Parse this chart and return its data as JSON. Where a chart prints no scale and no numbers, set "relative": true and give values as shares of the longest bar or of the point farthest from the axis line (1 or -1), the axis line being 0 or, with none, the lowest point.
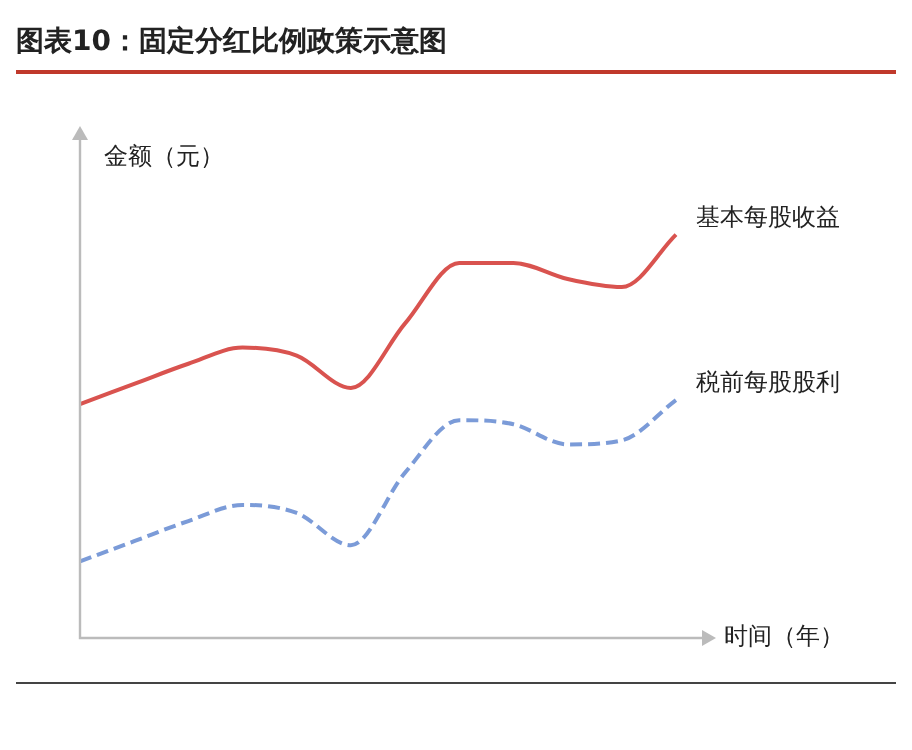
{
  "chart_data": {
    "type": "line",
    "title": "图表10：固定分红比例政策示意图",
    "xlabel": "时间（年）",
    "ylabel": "金额（元）",
    "relative": true,
    "legend": false,
    "marker": "none",
    "categories": [
      null,
      null,
      null,
      null,
      null,
      null,
      null,
      null,
      null,
      null,
      null,
      null
    ],
    "series": [
      {
        "name": "基本每股收益",
        "color": "#d9534f",
        "line_style": "solid",
        "values": [
          0.58,
          0.63,
          0.68,
          0.72,
          0.7,
          0.62,
          0.78,
          0.93,
          0.93,
          0.89,
          0.87,
          1
        ]
      },
      {
        "name": "税前每股股利",
        "color": "#7b9bd8",
        "line_style": "dashed",
        "values": [
          0.19,
          0.24,
          0.29,
          0.33,
          0.31,
          0.23,
          0.41,
          0.54,
          0.53,
          0.48,
          0.49,
          0.59
        ]
      }
    ]
  }
}
